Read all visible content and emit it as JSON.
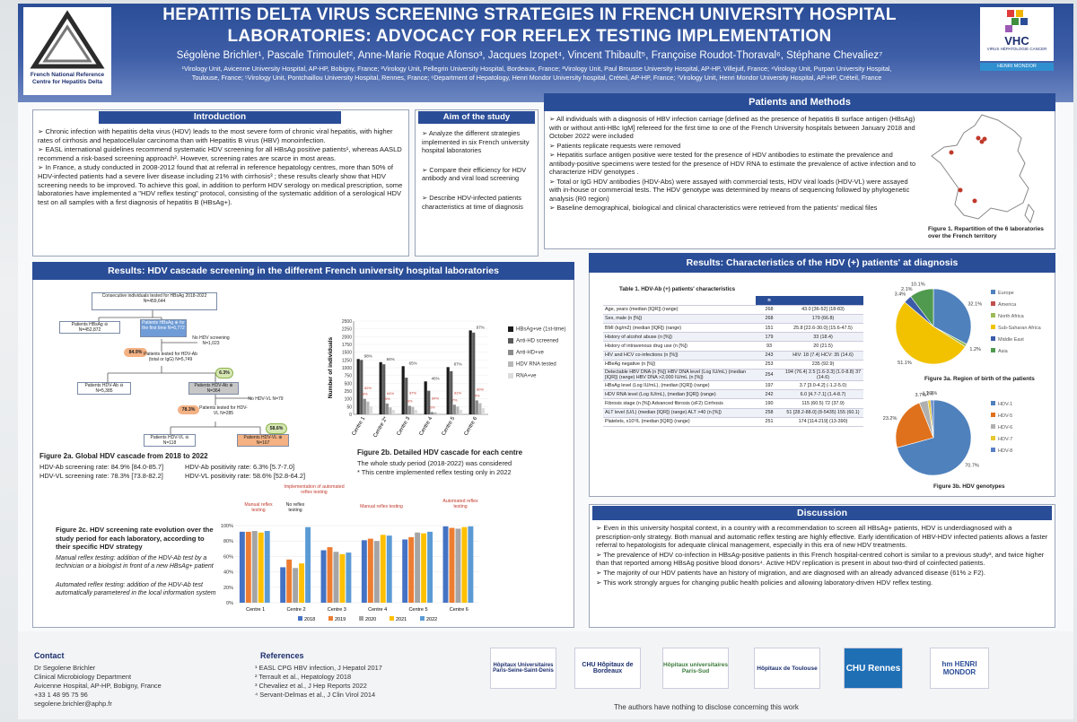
{
  "header": {
    "title_line1": "HEPATITIS DELTA VIRUS SCREENING STRATEGIES IN FRENCH UNIVERSITY HOSPITAL",
    "title_line2": "LABORATORIES: ADVOCACY FOR REFLEX TESTING IMPLEMENTATION",
    "authors": "Ségolène Brichler¹, Pascale Trimoulet², Anne-Marie Roque Afonso³, Jacques Izopet⁴, Vincent Thibault⁵, Françoise Roudot-Thoraval⁶, Stéphane Chevaliez⁷",
    "affil_line1": "¹Virology Unit, Avicenne University Hospital, AP-HP, Bobigny, France; ²Virology Unit, Pellegrin University Hospital, Bordeaux, France; ³Virology Unit, Paul Brousse University Hospital, AP-HP, Villejuif, France; ⁴Virology Unit, Purpan University Hospital,",
    "affil_line2": "Toulouse, France; ⁵Virology Unit, Pontchaillou University Hospital, Rennes, France; ⁶Department of Hepatology, Henri Mondor University hospital, Créteil, AP-HP, France; ⁷Virology Unit, Henri Mondor University Hospital, AP-HP, Créteil, France",
    "left_logo_caption": "French National Reference Centre for Hepatitis Delta",
    "right_logo_name": "VHC",
    "right_logo_sub": "VIRUS HÉPATOLOGIE CANCER",
    "right_logo_tag": "HENRI MONDOR"
  },
  "intro": {
    "heading": "Introduction",
    "p1": "➢ Chronic infection with hepatitis delta virus (HDV) leads to the most severe form of chronic viral hepatitis, with higher rates of cirrhosis and hepatocellular carcinoma than with Hepatitis B virus (HBV) monoinfection.",
    "p2": "➢ EASL international guidelines recommend systematic HDV screening for all HBsAg positive patients¹, whereas AASLD recommend a risk-based screening approach². However, screening rates are scarce in most areas.",
    "p3": "➢ In France, a study conducted in 2008-2012 found that at referral in reference hepatology centres, more than 50% of HDV-infected patients had a severe liver disease including 21% with cirrhosis³ ; these results clearly show that HDV screening needs to be improved. To achieve this goal, in addition to perform HDV serology on medical prescription, some laboratories have implemented a \"HDV reflex testing\" protocol, consisting of the systematic addition of a serological HDV test on all samples with a first diagnosis of hepatitis B (HBsAg+)."
  },
  "aim": {
    "heading": "Aim of the study",
    "p1": "➢ Analyze the different strategies implemented in six French university hospital laboratories",
    "p2": "➢ Compare their efficiency for HDV antibody and viral load screening",
    "p3": "➢ Describe HDV-infected patients characteristics at time of diagnosis"
  },
  "methods": {
    "heading": "Patients and Methods",
    "p1": "➢ All individuals with a diagnosis of HBV infection carriage [defined as the presence of hepatitis B surface antigen (HBsAg) with or without anti-HBc IgM] refereed for the first time to one of the French University hospitals between January 2018 and October 2022 were included",
    "p2": "➢ Patients replicate requests were removed",
    "p3": "➢ Hepatitis surface antigen positive were tested for the presence of HDV antibodies to estimate the prevalence and antibody-positive specimens were tested for the presence of HDV RNA to estimate the prevalence of active infection and to characterize HDV genotypes .",
    "p4": "➢ Total or IgG HDV antibodies (HDV-Abs) were assayed with commercial tests, HDV viral loads (HDV-VL) were assayed with in-house or commercial tests. The HDV genotype was determined by means of sequencing followed by phylogenetic analysis (R0 region)",
    "p5": "➢ Baseline demographical, biological and clinical characteristics were retrieved from the patients' medical files",
    "fig1_caption": "Figure 1. Repartition of the 6 laboratories over the French territory"
  },
  "cascade": {
    "heading": "Results: HDV cascade screening in the different French university hospital laboratories",
    "n_consecutive": "Consecutive individuals tested for HBsAg 2018-2022 N=459,644",
    "n_hbsag_neg": "Patients HBsAg ⊖ N=452,872",
    "n_hbsag_pos": "Patients HBsAg ⊕ for the first time N=6,772",
    "n_no_hdv_screen": "No HDV screening N=1,023",
    "pct_screen": "84.9%",
    "n_tested_ab": "Patients tested for HDV-Ab (total or IgG) N=5,749",
    "pct_ab_pos": "6.3%",
    "n_ab_neg": "Patients HDV-Ab ⊖ N=5,385",
    "n_ab_pos": "Patients HDV-Ab ⊕ N=364",
    "n_no_vl": "No HDV-VL N=79",
    "pct_vl": "78.3%",
    "n_tested_vl": "Patients tested for HDV-VL N=285",
    "pct_vl_pos": "58.6%",
    "n_vl_neg": "Patients HDV-VL ⊖ N=118",
    "n_vl_pos": "Patients HDV-VL ⊕ N=167",
    "fig2a_title": "Figure 2a. Global HDV cascade from 2018 to 2022",
    "fig2a_l1": "HDV-Ab screening rate: 84.9% [84.0-85.7]",
    "fig2a_l2": "HDV-VL screening rate: 78.3% [73.8-82.2]",
    "fig2a_r1": "HDV-Ab positivity rate: 6.3% [5.7-7.0]",
    "fig2a_r2": "HDV-VL positivity rate: 58.6% [52.8-64.2]",
    "fig2b_title": "Figure 2b. Detailed HDV cascade for each centre",
    "fig2b_l1": "The whole study period (2018-2022) was considered",
    "fig2b_l2": "* This centre implemented reflex testing only in 2022",
    "fig2c_title": "Figure 2c. HDV screening rate evolution over the study period for each laboratory, according to their specific HDV strategy",
    "fig2c_manual": "Manual reflex testing: addition of the HDV-Ab test by a technician or a biologist in front of a new HBsAg+ patient",
    "fig2c_auto": "Automated reflex testing: addition of the HDV-Ab test automatically parametered in the local information system",
    "label_manual": "Manual reflex testing",
    "label_noreflex": "No reflex testing",
    "label_impl": "Implementation of automated reflex testing",
    "label_manual2": "Manual reflex testing",
    "label_auto": "Automated reflex testing"
  },
  "charac": {
    "heading": "Results: Characteristics of the HDV (+) patients' at diagnosis",
    "table_title": "Table 1. HDV-Ab (+) patients' characteristics",
    "col_n": "n",
    "rows": [
      [
        "Age, years (median [IQR]) (range)",
        "268",
        "43.0 [36-52] (18-83)"
      ],
      [
        "Sex, male (n [%])",
        "268",
        "179 (66.8)"
      ],
      [
        "BMI (kg/m2) (median [IQR]) (range)",
        "151",
        "25.8 [22.6-30.0] (15.6-47.5)"
      ],
      [
        "History of alcohol abuse (n [%])",
        "179",
        "33 (18.4)"
      ],
      [
        "History of intravenous drug use (n [%])",
        "93",
        "20 (21.5)"
      ],
      [
        "HIV and HCV co-infections (n [%])",
        "243",
        "HIV: 18 (7.4) HCV: 35 (14.6)"
      ],
      [
        "HBeAg negative (n [%])",
        "253",
        "235 (92.9)"
      ],
      [
        "Detectable HBV DNA (n [%]) HBV DNA level (Log IU/mL) (median [IQR]) (range) HBV DNA >2,000 IU/mL (n [%])",
        "254",
        "194 (76.4) 2.5 [1.6-3.3] (1.0-8.8) 37 (14.6)"
      ],
      [
        "HBsAg level (Log IU/mL), (median [IQR]) (range)",
        "197",
        "3.7 [3.0-4.2] (-1.2-5.0)"
      ],
      [
        "HDV RNA level (Log IU/mL), (median [IQR]) (range)",
        "242",
        "6.0 [4.7-7.1] (1.4-8.7)"
      ],
      [
        "Fibrosis stage (n [%]) Advanced fibrosis (≥F2) Cirrhosis",
        "190",
        "115 (60.5) 72 (37.9)"
      ],
      [
        "ALT level (U/L) (median [IQR]) (range) ALT >40 (n [%])",
        "258",
        "51 [28.2-88.0] (8-5435) 155 (60.1)"
      ],
      [
        "Platelets, x10⁹/L (median [IQR]) (range)",
        "251",
        "174 [114-219] (13-390)"
      ]
    ],
    "fig3a_caption": "Figure 3a. Region of birth of the patients",
    "fig3b_caption": "Figure 3b. HDV genotypes"
  },
  "discussion": {
    "heading": "Discussion",
    "p1": "➢ Even in this university hospital context, in a country with a recommendation to screen all HBsAg+ patients, HDV is underdiagnosed with a prescription-only strategy. Both manual and automatic reflex testing are highly effective. Early identification of HBV-HDV infected patients allows a faster referral to hepatologists for adequate clinical management, especially in this era of new HDV treatments.",
    "p2": "➢ The prevalence of HDV co-infection in HBsAg-positive patients in this French hospital-centred cohort is similar to a previous study³, and twice higher than that reported among HBsAg positive blood donors⁴. Active HDV replication is present in about two-third of coinfected patients.",
    "p3": "➢ The majority of our HDV patients have an history of migration, and are diagnosed with an already advanced disease (61% ≥ F2).",
    "p4": "➢ This work strongly argues for changing public health policies and allowing laboratory-driven HDV reflex testing."
  },
  "footer": {
    "contact_h": "Contact",
    "c1": "Dr Segolene Brichler",
    "c2": "Clinical Microbiology Department",
    "c3": "Avicenne Hospital, AP-HP, Bobigny, France",
    "c4": "+33 1 48 95 75 96",
    "c5": "segolene.brichler@aphp.fr",
    "ref_h": "References",
    "r1": "¹ EASL CPG HBV infection, J Hepatol 2017",
    "r2": "² Terrault et al., Hepatology 2018",
    "r3": "³ Chevaliez et al., J Hep Reports 2022",
    "r4": "⁴ Servant-Delmas et al., J Clin Virol 2014",
    "disclose": "The authors have nothing to disclose concerning this work",
    "logo1": "Hôpitaux Universitaires Paris-Seine-Saint-Denis",
    "logo2": "CHU Hôpitaux de Bordeaux",
    "logo3": "Hôpitaux universitaires Paris-Sud",
    "logo4": "Hôpitaux de Toulouse",
    "logo5": "CHU Rennes",
    "logo6": "hm HENRI MONDOR"
  },
  "chart_data": [
    {
      "id": "fig2b",
      "type": "bar",
      "ylabel": "Number of individuals",
      "ylim": [
        0,
        2500
      ],
      "yticks": [
        "0",
        "50",
        "100",
        "250",
        "500",
        "750",
        "1000",
        "1250",
        "1500",
        "1750",
        "2000",
        "2250",
        "2500"
      ],
      "categories": [
        "Centre 1",
        "Centre 2*",
        "Centre 3",
        "Centre 4",
        "Centre 5",
        "Centre 6"
      ],
      "pct_labels": [
        "98%",
        "94%",
        "65%",
        "46%",
        "87%",
        "97%"
      ],
      "sub_labels": [
        "8%",
        "6%",
        "8%",
        "6%",
        "7%",
        "4%"
      ],
      "vl_labels": [
        "82%",
        "64%",
        "87%",
        "84%",
        "81%",
        "80%"
      ],
      "series": [
        {
          "name": "HBsAg+ve (1st-time)",
          "color": "#1a1a1a",
          "values": [
            1280,
            1180,
            1050,
            560,
            1020,
            2200
          ]
        },
        {
          "name": "Anti-HD screened",
          "color": "#5a5a5a",
          "values": [
            1250,
            1110,
            680,
            260,
            890,
            2130
          ]
        },
        {
          "name": "Anti-HD+ve",
          "color": "#8c8c8c",
          "values": [
            100,
            70,
            55,
            15,
            62,
            90
          ]
        },
        {
          "name": "HDV RNA tested",
          "color": "#b8b8b8",
          "values": [
            82,
            45,
            48,
            13,
            50,
            72
          ]
        },
        {
          "name": "RNA+ve",
          "color": "#dcdcdc",
          "values": [
            50,
            28,
            28,
            8,
            30,
            40
          ]
        }
      ]
    },
    {
      "id": "fig2c",
      "type": "bar",
      "ylim": [
        0,
        100
      ],
      "yticks": [
        "0%",
        "20%",
        "40%",
        "60%",
        "80%",
        "100%"
      ],
      "categories": [
        "Centre 1",
        "Centre 2",
        "Centre 3",
        "Centre 4",
        "Centre 5",
        "Centre 6"
      ],
      "series": [
        {
          "name": "2018",
          "color": "#4472c4",
          "values": [
            92,
            46,
            68,
            81,
            82,
            99
          ]
        },
        {
          "name": "2019",
          "color": "#ed7d31",
          "values": [
            92,
            56,
            72,
            83,
            85,
            97
          ]
        },
        {
          "name": "2020",
          "color": "#a5a5a5",
          "values": [
            93,
            45,
            66,
            80,
            91,
            96
          ]
        },
        {
          "name": "2021",
          "color": "#ffc000",
          "values": [
            91,
            51,
            63,
            88,
            90,
            98
          ]
        },
        {
          "name": "2022",
          "color": "#5b9bd5",
          "values": [
            93,
            98,
            65,
            87,
            92,
            99
          ]
        }
      ]
    },
    {
      "id": "fig3a",
      "type": "pie",
      "title": "Figure 3a. Region of birth of the patients",
      "labels": [
        "Europe",
        "America",
        "North Africa",
        "Sub-Saharan Africa",
        "Middle East",
        "Asia"
      ],
      "values": [
        32.1,
        0,
        1.2,
        51.1,
        3.4,
        10.1
      ],
      "pct_labels": [
        "32.1%",
        "",
        "1.2%",
        "51.1%",
        "3.4%",
        "10.1%"
      ],
      "extra_label": "2.1%",
      "colors": [
        "#4f81bd",
        "#c0504d",
        "#9bbb59",
        "#f2c200",
        "#3b5ba8",
        "#4f9a4f"
      ]
    },
    {
      "id": "fig3b",
      "type": "pie",
      "title": "Figure 3b. HDV genotypes",
      "labels": [
        "HDV-1",
        "HDV-5",
        "HDV-6",
        "HDV-7",
        "HDV-8"
      ],
      "values": [
        70.7,
        23.2,
        3.7,
        1.2,
        1.2
      ],
      "pct_labels": [
        "70.7%",
        "23.2%",
        "3.7%",
        "1.2%",
        "1.2%"
      ],
      "colors": [
        "#4f81bd",
        "#e0711c",
        "#b0b0b0",
        "#e8c832",
        "#5b7fc6"
      ]
    }
  ]
}
